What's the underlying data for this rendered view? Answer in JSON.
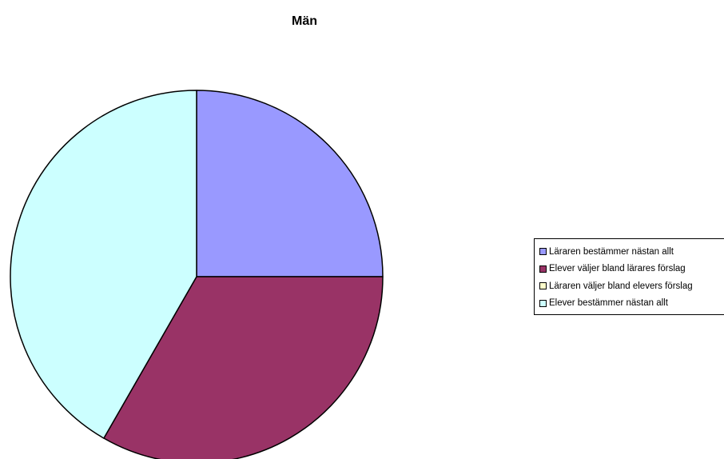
{
  "chart_data": {
    "type": "pie",
    "title": "Män",
    "start_angle_deg": 0,
    "direction": "clockwise",
    "slices": [
      {
        "label": "Läraren bestämmer nästan allt",
        "value": 25,
        "color": "#9999ff"
      },
      {
        "label": "Elever väljer bland lärares förslag",
        "value": 33.3,
        "color": "#993366"
      },
      {
        "label": "Läraren väljer bland elevers förslag",
        "value": 0,
        "color": "#ffffcc"
      },
      {
        "label": "Elever bestämmer nästan allt",
        "value": 41.7,
        "color": "#ccffff"
      }
    ],
    "legend_position": "right",
    "grid": false
  }
}
